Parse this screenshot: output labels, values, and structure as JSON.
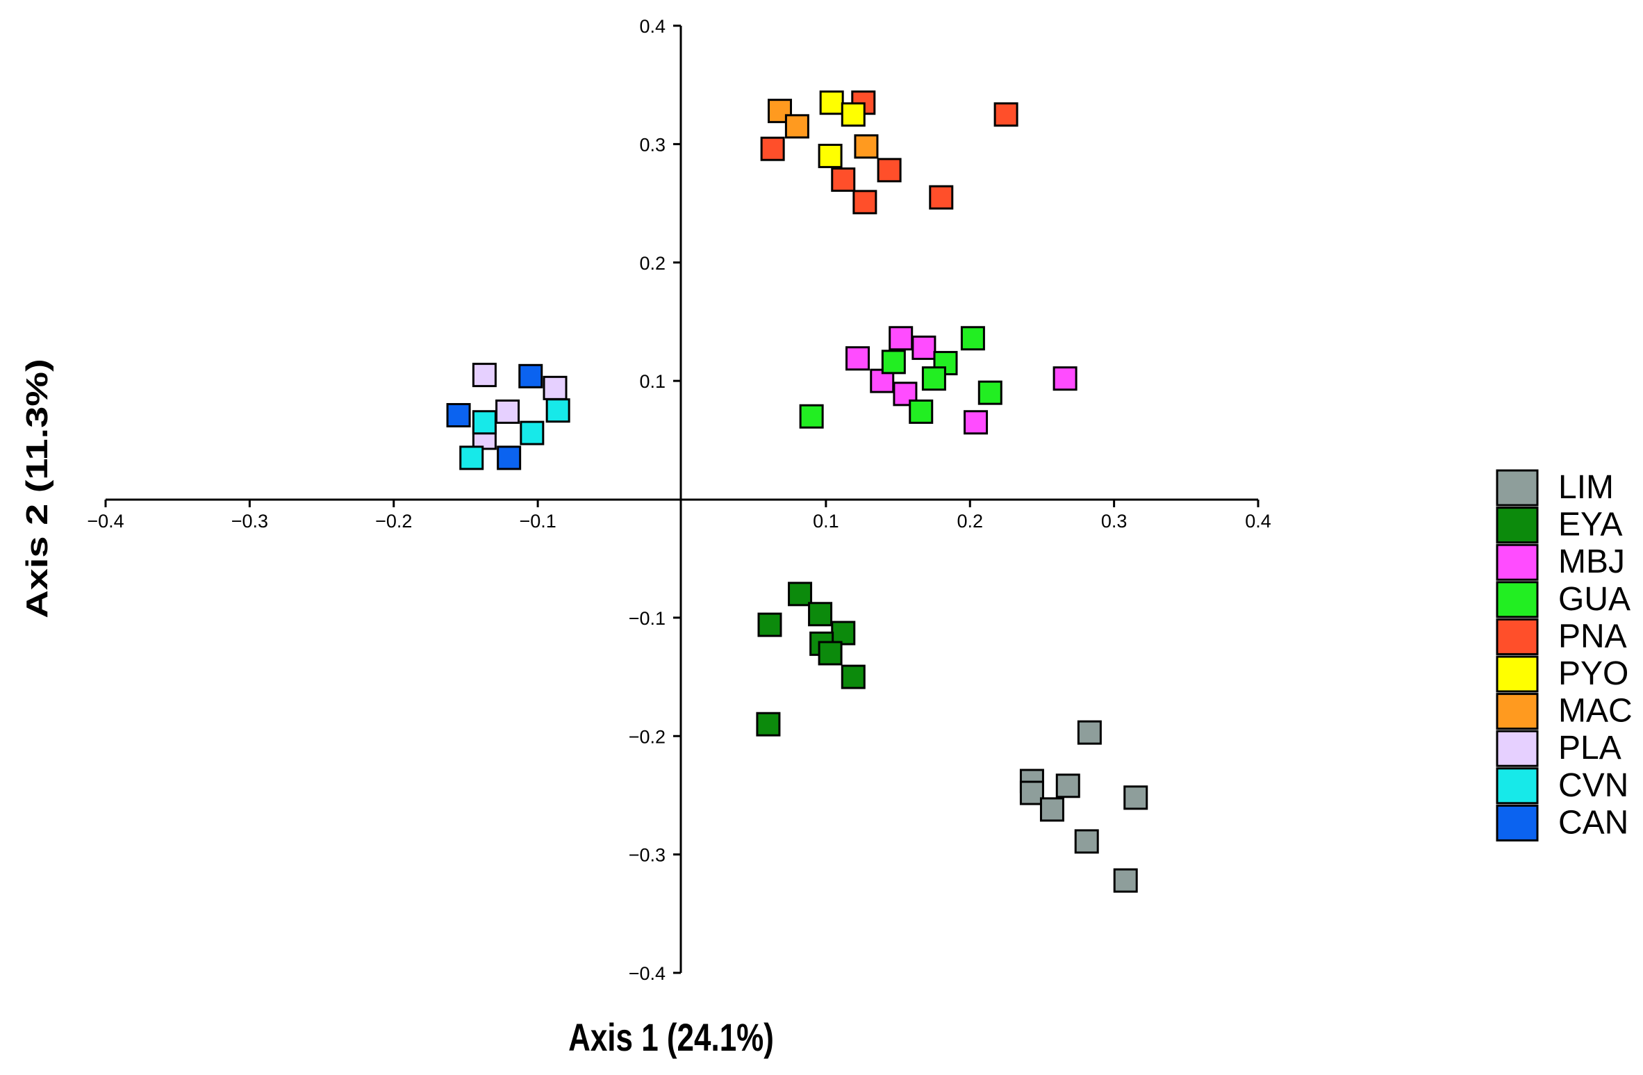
{
  "chart_data": {
    "type": "scatter",
    "title": "",
    "xlabel": "Axis 1 (24.1%)",
    "ylabel": "Axis 2 (11.3%)",
    "xlim": [
      -0.4,
      0.4
    ],
    "ylim": [
      -0.4,
      0.4
    ],
    "xticks": [
      -0.4,
      -0.3,
      -0.2,
      -0.1,
      0.1,
      0.2,
      0.3,
      0.4
    ],
    "yticks": [
      0.4,
      0.3,
      0.2,
      0.1,
      -0.1,
      -0.2,
      -0.3,
      -0.4
    ],
    "xtick_labels": [
      "−0.4",
      "−0.3",
      "−0.2",
      "−0.1",
      "0.1",
      "0.2",
      "0.3",
      "0.4"
    ],
    "ytick_labels": [
      "0.4",
      "0.3",
      "0.2",
      "0.1",
      "−0.1",
      "−0.2",
      "−0.3",
      "−0.4"
    ],
    "grid": false,
    "legend_position": "right",
    "series": [
      {
        "name": "LIM",
        "color": "#8e9e9b",
        "points": [
          [
            0.283,
            -0.197
          ],
          [
            0.243,
            -0.238
          ],
          [
            0.243,
            -0.248
          ],
          [
            0.268,
            -0.242
          ],
          [
            0.257,
            -0.262
          ],
          [
            0.315,
            -0.252
          ],
          [
            0.281,
            -0.289
          ],
          [
            0.308,
            -0.322
          ]
        ]
      },
      {
        "name": "EYA",
        "color": "#0c8a0c",
        "points": [
          [
            0.082,
            -0.08
          ],
          [
            0.096,
            -0.097
          ],
          [
            0.061,
            -0.106
          ],
          [
            0.112,
            -0.113
          ],
          [
            0.097,
            -0.122
          ],
          [
            0.103,
            -0.13
          ],
          [
            0.119,
            -0.15
          ],
          [
            0.06,
            -0.19
          ]
        ]
      },
      {
        "name": "MBJ",
        "color": "#ff4cff",
        "points": [
          [
            0.152,
            0.136
          ],
          [
            0.168,
            0.128
          ],
          [
            0.122,
            0.119
          ],
          [
            0.139,
            0.1
          ],
          [
            0.155,
            0.089
          ],
          [
            0.266,
            0.102
          ],
          [
            0.204,
            0.065
          ]
        ]
      },
      {
        "name": "GUA",
        "color": "#22ee22",
        "points": [
          [
            0.202,
            0.136
          ],
          [
            0.183,
            0.115
          ],
          [
            0.147,
            0.116
          ],
          [
            0.175,
            0.102
          ],
          [
            0.214,
            0.09
          ],
          [
            0.166,
            0.074
          ],
          [
            0.09,
            0.07
          ]
        ]
      },
      {
        "name": "PNA",
        "color": "#ff4f2a",
        "points": [
          [
            0.126,
            0.335
          ],
          [
            0.225,
            0.325
          ],
          [
            0.063,
            0.296
          ],
          [
            0.144,
            0.278
          ],
          [
            0.112,
            0.27
          ],
          [
            0.18,
            0.255
          ],
          [
            0.127,
            0.251
          ]
        ]
      },
      {
        "name": "PYO",
        "color": "#ffff00",
        "points": [
          [
            0.104,
            0.335
          ],
          [
            0.119,
            0.325
          ],
          [
            0.103,
            0.29
          ]
        ]
      },
      {
        "name": "MAC",
        "color": "#ff9a1f",
        "points": [
          [
            0.068,
            0.328
          ],
          [
            0.08,
            0.315
          ],
          [
            0.128,
            0.298
          ]
        ]
      },
      {
        "name": "PLA",
        "color": "#e6d0ff",
        "points": [
          [
            -0.137,
            0.105
          ],
          [
            -0.088,
            0.094
          ],
          [
            -0.121,
            0.074
          ],
          [
            -0.137,
            0.052
          ]
        ]
      },
      {
        "name": "CVN",
        "color": "#17e9e9",
        "points": [
          [
            -0.086,
            0.075
          ],
          [
            -0.137,
            0.065
          ],
          [
            -0.104,
            0.056
          ],
          [
            -0.146,
            0.035
          ]
        ]
      },
      {
        "name": "CAN",
        "color": "#0b63f0",
        "points": [
          [
            -0.105,
            0.104
          ],
          [
            -0.155,
            0.071
          ],
          [
            -0.12,
            0.035
          ]
        ]
      }
    ]
  }
}
